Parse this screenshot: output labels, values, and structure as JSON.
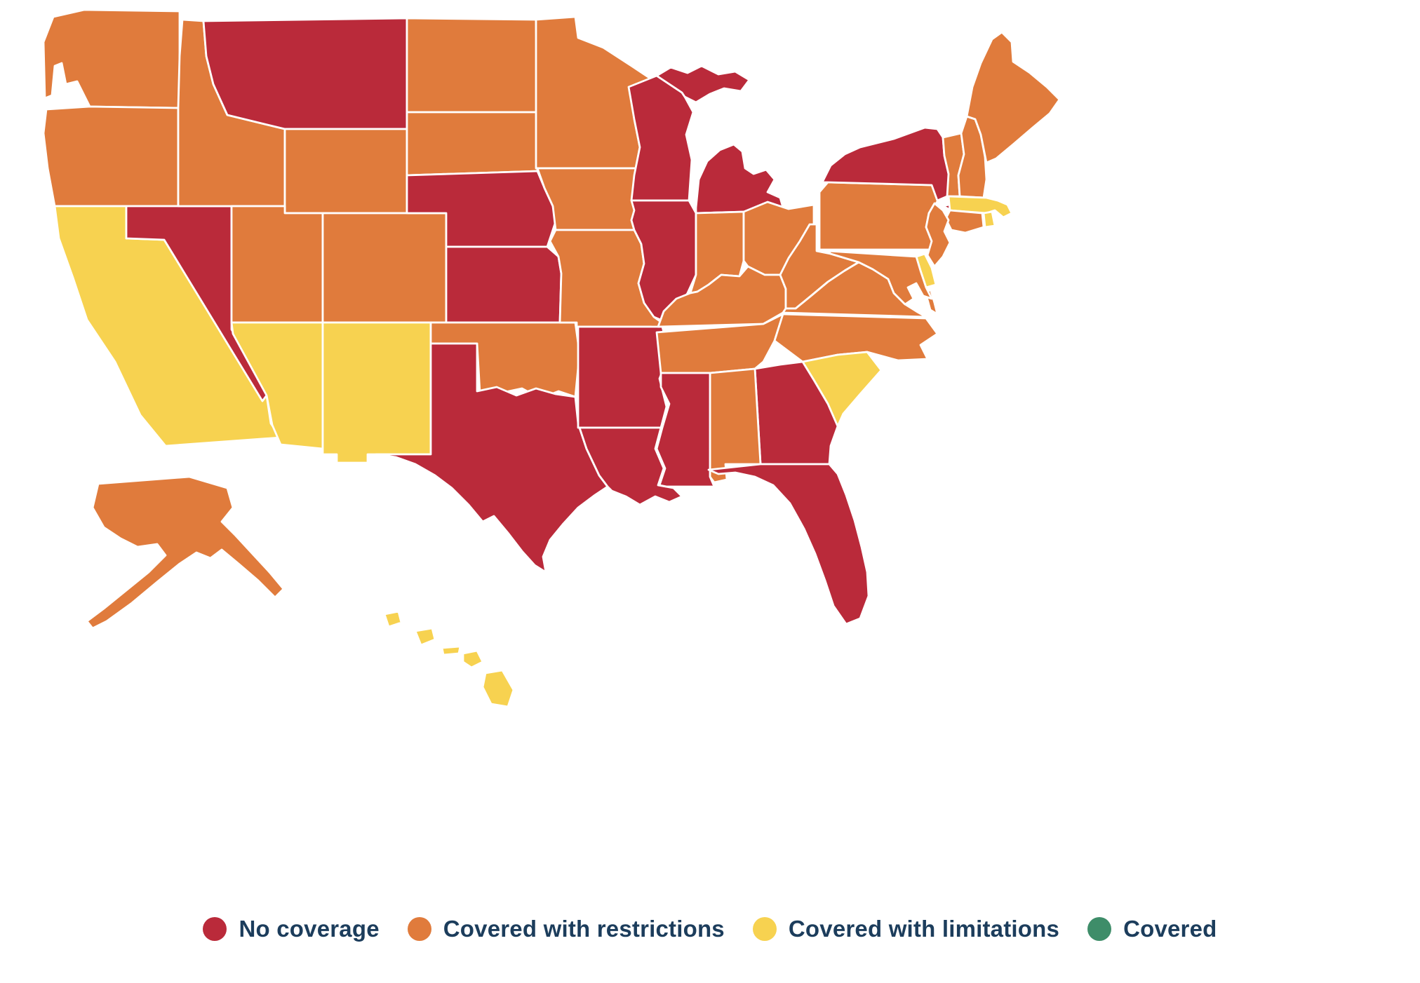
{
  "page": {
    "background": "#FFFFFF"
  },
  "legend": {
    "text_color": "#1C3D5C",
    "items": [
      {
        "key": "no_coverage",
        "label": "No coverage",
        "color": "#BA2A3A"
      },
      {
        "key": "covered_with_restrictions",
        "label": "Covered with restrictions",
        "color": "#E07B3C"
      },
      {
        "key": "covered_with_limitations",
        "label": "Covered with limitations",
        "color": "#F7D250"
      },
      {
        "key": "covered",
        "label": "Covered",
        "color": "#3E8D69"
      }
    ]
  },
  "map": {
    "stroke_color": "#FFFFFF",
    "states": [
      {
        "id": "AL",
        "name": "Alabama",
        "status": "covered_with_restrictions"
      },
      {
        "id": "AK",
        "name": "Alaska",
        "status": "covered_with_restrictions"
      },
      {
        "id": "AZ",
        "name": "Arizona",
        "status": "covered_with_limitations"
      },
      {
        "id": "AR",
        "name": "Arkansas",
        "status": "no_coverage"
      },
      {
        "id": "CA",
        "name": "California",
        "status": "covered_with_limitations"
      },
      {
        "id": "CO",
        "name": "Colorado",
        "status": "covered_with_restrictions"
      },
      {
        "id": "CT",
        "name": "Connecticut",
        "status": "covered_with_restrictions"
      },
      {
        "id": "DE",
        "name": "Delaware",
        "status": "covered_with_limitations"
      },
      {
        "id": "FL",
        "name": "Florida",
        "status": "no_coverage"
      },
      {
        "id": "GA",
        "name": "Georgia",
        "status": "no_coverage"
      },
      {
        "id": "HI",
        "name": "Hawaii",
        "status": "covered_with_limitations"
      },
      {
        "id": "ID",
        "name": "Idaho",
        "status": "covered_with_restrictions"
      },
      {
        "id": "IL",
        "name": "Illinois",
        "status": "no_coverage"
      },
      {
        "id": "IN",
        "name": "Indiana",
        "status": "covered_with_restrictions"
      },
      {
        "id": "IA",
        "name": "Iowa",
        "status": "covered_with_restrictions"
      },
      {
        "id": "KS",
        "name": "Kansas",
        "status": "no_coverage"
      },
      {
        "id": "KY",
        "name": "Kentucky",
        "status": "covered_with_restrictions"
      },
      {
        "id": "LA",
        "name": "Louisiana",
        "status": "no_coverage"
      },
      {
        "id": "ME",
        "name": "Maine",
        "status": "covered_with_restrictions"
      },
      {
        "id": "MD",
        "name": "Maryland",
        "status": "covered_with_restrictions"
      },
      {
        "id": "MA",
        "name": "Massachusetts",
        "status": "covered_with_limitations"
      },
      {
        "id": "MI",
        "name": "Michigan",
        "status": "no_coverage"
      },
      {
        "id": "MN",
        "name": "Minnesota",
        "status": "covered_with_restrictions"
      },
      {
        "id": "MS",
        "name": "Mississippi",
        "status": "no_coverage"
      },
      {
        "id": "MO",
        "name": "Missouri",
        "status": "covered_with_restrictions"
      },
      {
        "id": "MT",
        "name": "Montana",
        "status": "no_coverage"
      },
      {
        "id": "NE",
        "name": "Nebraska",
        "status": "no_coverage"
      },
      {
        "id": "NV",
        "name": "Nevada",
        "status": "no_coverage"
      },
      {
        "id": "NH",
        "name": "New Hampshire",
        "status": "covered_with_restrictions"
      },
      {
        "id": "NJ",
        "name": "New Jersey",
        "status": "covered_with_restrictions"
      },
      {
        "id": "NM",
        "name": "New Mexico",
        "status": "covered_with_limitations"
      },
      {
        "id": "NY",
        "name": "New York",
        "status": "no_coverage"
      },
      {
        "id": "NC",
        "name": "North Carolina",
        "status": "covered_with_restrictions"
      },
      {
        "id": "ND",
        "name": "North Dakota",
        "status": "covered_with_restrictions"
      },
      {
        "id": "OH",
        "name": "Ohio",
        "status": "covered_with_restrictions"
      },
      {
        "id": "OK",
        "name": "Oklahoma",
        "status": "covered_with_restrictions"
      },
      {
        "id": "OR",
        "name": "Oregon",
        "status": "covered_with_restrictions"
      },
      {
        "id": "PA",
        "name": "Pennsylvania",
        "status": "covered_with_restrictions"
      },
      {
        "id": "RI",
        "name": "Rhode Island",
        "status": "covered_with_limitations"
      },
      {
        "id": "SC",
        "name": "South Carolina",
        "status": "covered_with_limitations"
      },
      {
        "id": "SD",
        "name": "South Dakota",
        "status": "covered_with_restrictions"
      },
      {
        "id": "TN",
        "name": "Tennessee",
        "status": "covered_with_restrictions"
      },
      {
        "id": "TX",
        "name": "Texas",
        "status": "no_coverage"
      },
      {
        "id": "UT",
        "name": "Utah",
        "status": "covered_with_restrictions"
      },
      {
        "id": "VT",
        "name": "Vermont",
        "status": "covered_with_restrictions"
      },
      {
        "id": "VA",
        "name": "Virginia",
        "status": "covered_with_restrictions"
      },
      {
        "id": "WA",
        "name": "Washington",
        "status": "covered_with_restrictions"
      },
      {
        "id": "WV",
        "name": "West Virginia",
        "status": "covered_with_restrictions"
      },
      {
        "id": "WI",
        "name": "Wisconsin",
        "status": "no_coverage"
      },
      {
        "id": "WY",
        "name": "Wyoming",
        "status": "covered_with_restrictions"
      }
    ]
  }
}
